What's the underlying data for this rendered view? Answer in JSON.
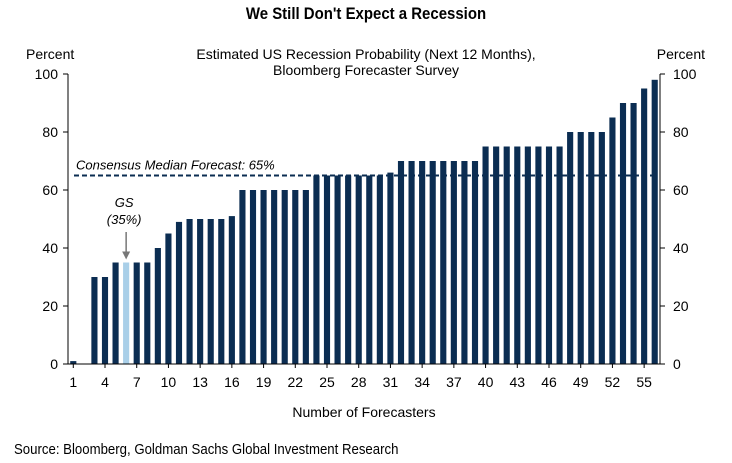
{
  "title": "We Still Don't Expect a Recession",
  "source": "Source: Bloomberg, Goldman Sachs Global Investment Research",
  "colors": {
    "bar": "#0b2d52",
    "highlight": "#a9cfe8",
    "line": "#0b2d52"
  },
  "chart_data": {
    "type": "bar",
    "subtitle_lines": [
      "Estimated US Recession Probability (Next 12 Months),",
      "Bloomberg Forecaster Survey"
    ],
    "xlabel": "Number of Forecasters",
    "ylabel_left": "Percent",
    "ylabel_right": "Percent",
    "ylim": [
      0,
      100
    ],
    "yticks": [
      0,
      20,
      40,
      60,
      80,
      100
    ],
    "xticks": [
      1,
      4,
      7,
      10,
      13,
      16,
      19,
      22,
      25,
      28,
      31,
      34,
      37,
      40,
      43,
      46,
      49,
      52,
      55
    ],
    "x": [
      1,
      2,
      3,
      4,
      5,
      6,
      7,
      8,
      9,
      10,
      11,
      12,
      13,
      14,
      15,
      16,
      17,
      18,
      19,
      20,
      21,
      22,
      23,
      24,
      25,
      26,
      27,
      28,
      29,
      30,
      31,
      32,
      33,
      34,
      35,
      36,
      37,
      38,
      39,
      40,
      41,
      42,
      43,
      44,
      45,
      46,
      47,
      48,
      49,
      50,
      51,
      52,
      53,
      54,
      55,
      56
    ],
    "values": [
      1,
      0,
      30,
      30,
      35,
      35,
      35,
      35,
      40,
      45,
      49,
      50,
      50,
      50,
      50,
      51,
      60,
      60,
      60,
      60,
      60,
      60,
      60,
      65,
      65,
      65,
      65,
      65,
      65,
      65,
      66,
      70,
      70,
      70,
      70,
      70,
      70,
      70,
      70,
      75,
      75,
      75,
      75,
      75,
      75,
      75,
      75,
      80,
      80,
      80,
      80,
      85,
      90,
      90,
      95,
      98
    ],
    "highlight_index": 5,
    "highlight_label": "GS",
    "highlight_value_label": "(35%)",
    "consensus": {
      "value": 65,
      "label": "Consensus Median Forecast: 65%"
    },
    "grid": false
  }
}
